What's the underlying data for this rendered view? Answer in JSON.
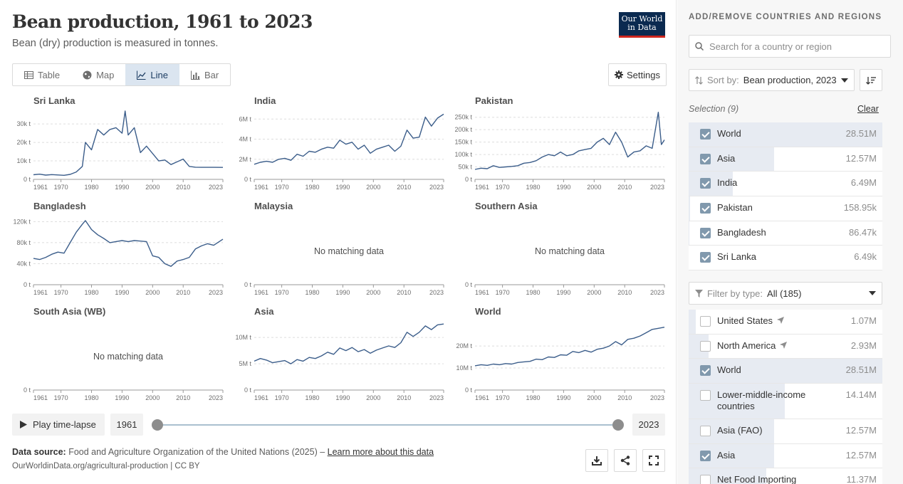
{
  "header": {
    "title": "Bean production, 1961 to 2023",
    "subtitle": "Bean (dry) production is measured in tonnes.",
    "logo_line1": "Our World",
    "logo_line2": "in Data"
  },
  "tabs": [
    {
      "label": "Table",
      "icon": "table-icon",
      "active": false
    },
    {
      "label": "Map",
      "icon": "globe-icon",
      "active": false
    },
    {
      "label": "Line",
      "icon": "line-chart-icon",
      "active": true
    },
    {
      "label": "Bar",
      "icon": "bar-chart-icon",
      "active": false
    }
  ],
  "settings_label": "Settings",
  "timeline": {
    "play_label": "Play time-lapse",
    "start_year": "1961",
    "end_year": "2023"
  },
  "footer": {
    "source_label": "Data source:",
    "source_text": "Food and Agriculture Organization of the United Nations (2025) –",
    "learn_more": "Learn more about this data",
    "url": "OurWorldinData.org/agricultural-production | CC BY"
  },
  "sidebar": {
    "heading": "ADD/REMOVE COUNTRIES AND REGIONS",
    "search_placeholder": "Search for a country or region",
    "sort_label": "Sort by:",
    "sort_value": "Bean production, 2023",
    "selection_label": "Selection (9)",
    "clear_label": "Clear",
    "selected": [
      {
        "name": "World",
        "value": "28.51M",
        "checked": true,
        "share": 1.0
      },
      {
        "name": "Asia",
        "value": "12.57M",
        "checked": true,
        "share": 0.441
      },
      {
        "name": "India",
        "value": "6.49M",
        "checked": true,
        "share": 0.228
      },
      {
        "name": "Pakistan",
        "value": "158.95k",
        "checked": true,
        "share": 0.006
      },
      {
        "name": "Bangladesh",
        "value": "86.47k",
        "checked": true,
        "share": 0.003
      },
      {
        "name": "Sri Lanka",
        "value": "6.49k",
        "checked": true,
        "share": 0.0002
      }
    ],
    "filter_label": "Filter by type:",
    "filter_value": "All (185)",
    "all_items": [
      {
        "name": "United States",
        "value": "1.07M",
        "checked": false,
        "share": 0.038,
        "locate": true
      },
      {
        "name": "North America",
        "value": "2.93M",
        "checked": false,
        "share": 0.103,
        "locate": true
      },
      {
        "name": "World",
        "value": "28.51M",
        "checked": true,
        "share": 1.0,
        "locate": false
      },
      {
        "name": "Lower-middle-income countries",
        "value": "14.14M",
        "checked": false,
        "share": 0.496,
        "locate": false
      },
      {
        "name": "Asia (FAO)",
        "value": "12.57M",
        "checked": false,
        "share": 0.441,
        "locate": false
      },
      {
        "name": "Asia",
        "value": "12.57M",
        "checked": true,
        "share": 0.441,
        "locate": false
      },
      {
        "name": "Net Food Importing",
        "value": "11.37M",
        "checked": false,
        "share": 0.399,
        "locate": false
      }
    ]
  },
  "chart_data": [
    {
      "type": "line",
      "title": "Sri Lanka",
      "has_data": true,
      "x_ticks": [
        "1961",
        "1970",
        "1980",
        "1990",
        "2000",
        "2010",
        "2023"
      ],
      "y_ticks": [
        "0 t",
        "10k t",
        "20k t",
        "30k t"
      ],
      "ylim": [
        0,
        37000
      ],
      "x": [
        1961,
        1963,
        1965,
        1967,
        1969,
        1971,
        1973,
        1975,
        1977,
        1978,
        1980,
        1982,
        1984,
        1986,
        1988,
        1990,
        1991,
        1992,
        1994,
        1996,
        1998,
        2000,
        2002,
        2004,
        2006,
        2008,
        2010,
        2012,
        2014,
        2016,
        2018,
        2020,
        2023
      ],
      "y": [
        2500,
        2800,
        2300,
        2600,
        2400,
        2200,
        2700,
        4000,
        7000,
        20000,
        16000,
        27000,
        24000,
        27000,
        28000,
        25000,
        37000,
        24000,
        28000,
        14500,
        18000,
        14000,
        10000,
        10500,
        8000,
        9500,
        11000,
        7000,
        6600,
        6500,
        6500,
        6500,
        6490
      ],
      "no_data_text": ""
    },
    {
      "type": "line",
      "title": "India",
      "has_data": true,
      "x_ticks": [
        "1961",
        "1970",
        "1980",
        "1990",
        "2000",
        "2010",
        "2023"
      ],
      "y_ticks": [
        "0 t",
        "2M t",
        "4M t",
        "6M t"
      ],
      "ylim": [
        0,
        6800000
      ],
      "x": [
        1961,
        1963,
        1965,
        1967,
        1969,
        1971,
        1973,
        1975,
        1977,
        1979,
        1981,
        1983,
        1985,
        1987,
        1989,
        1991,
        1993,
        1995,
        1997,
        1999,
        2001,
        2003,
        2005,
        2007,
        2009,
        2011,
        2013,
        2015,
        2017,
        2019,
        2021,
        2023
      ],
      "y": [
        1500000,
        1700000,
        1800000,
        1700000,
        2000000,
        2100000,
        1900000,
        2500000,
        2300000,
        2800000,
        2700000,
        3000000,
        3200000,
        3100000,
        3900000,
        3500000,
        3700000,
        3000000,
        3400000,
        2600000,
        3000000,
        3200000,
        3400000,
        2800000,
        3300000,
        4900000,
        4100000,
        4200000,
        6200000,
        5300000,
        6100000,
        6490000
      ],
      "no_data_text": ""
    },
    {
      "type": "line",
      "title": "Pakistan",
      "has_data": true,
      "x_ticks": [
        "1961",
        "1970",
        "1980",
        "1990",
        "2000",
        "2010",
        "2023"
      ],
      "y_ticks": [
        "0 t",
        "50k t",
        "100k t",
        "150k t",
        "200k t",
        "250k t"
      ],
      "ylim": [
        0,
        275000
      ],
      "x": [
        1961,
        1963,
        1965,
        1967,
        1969,
        1971,
        1973,
        1975,
        1977,
        1979,
        1981,
        1983,
        1985,
        1987,
        1989,
        1991,
        1993,
        1995,
        1997,
        1999,
        2001,
        2003,
        2005,
        2007,
        2009,
        2011,
        2013,
        2015,
        2017,
        2019,
        2021,
        2022,
        2023
      ],
      "y": [
        40000,
        45000,
        43000,
        55000,
        48000,
        50000,
        52000,
        55000,
        65000,
        68000,
        75000,
        90000,
        100000,
        95000,
        110000,
        95000,
        100000,
        115000,
        120000,
        125000,
        150000,
        165000,
        140000,
        190000,
        150000,
        90000,
        110000,
        115000,
        135000,
        125000,
        270000,
        140000,
        158950
      ],
      "no_data_text": ""
    },
    {
      "type": "line",
      "title": "Bangladesh",
      "has_data": true,
      "x_ticks": [
        "1961",
        "1970",
        "1980",
        "1990",
        "2000",
        "2010",
        "2023"
      ],
      "y_ticks": [
        "0 t",
        "40k t",
        "80k t",
        "120k t"
      ],
      "ylim": [
        0,
        130000
      ],
      "x": [
        1961,
        1963,
        1965,
        1967,
        1969,
        1971,
        1973,
        1975,
        1977,
        1978,
        1980,
        1982,
        1984,
        1986,
        1988,
        1990,
        1992,
        1994,
        1996,
        1998,
        2000,
        2002,
        2004,
        2006,
        2008,
        2010,
        2012,
        2014,
        2016,
        2018,
        2020,
        2023
      ],
      "y": [
        50000,
        48000,
        52000,
        58000,
        62000,
        60000,
        80000,
        100000,
        115000,
        122000,
        105000,
        95000,
        88000,
        80000,
        82000,
        84000,
        82000,
        84000,
        83000,
        82000,
        55000,
        52000,
        40000,
        35000,
        45000,
        48000,
        52000,
        68000,
        74000,
        78000,
        75000,
        86470
      ],
      "no_data_text": ""
    },
    {
      "type": "line",
      "title": "Malaysia",
      "has_data": false,
      "x_ticks": [
        "1961",
        "1970",
        "1980",
        "1990",
        "2000",
        "2010",
        "2023"
      ],
      "y_ticks": [
        "0 t"
      ],
      "ylim": [
        0,
        1
      ],
      "x": [],
      "y": [],
      "no_data_text": "No matching data"
    },
    {
      "type": "line",
      "title": "Southern Asia",
      "has_data": false,
      "x_ticks": [
        "1961",
        "1970",
        "1980",
        "1990",
        "2000",
        "2010",
        "2023"
      ],
      "y_ticks": [
        "0 t"
      ],
      "ylim": [
        0,
        1
      ],
      "x": [],
      "y": [],
      "no_data_text": "No matching data"
    },
    {
      "type": "line",
      "title": "South Asia (WB)",
      "has_data": false,
      "x_ticks": [
        "1961",
        "1970",
        "1980",
        "1990",
        "2000",
        "2010",
        "2023"
      ],
      "y_ticks": [
        "0 t"
      ],
      "ylim": [
        0,
        1
      ],
      "x": [],
      "y": [],
      "no_data_text": "No matching data"
    },
    {
      "type": "line",
      "title": "Asia",
      "has_data": true,
      "x_ticks": [
        "1961",
        "1970",
        "1980",
        "1990",
        "2000",
        "2010",
        "2023"
      ],
      "y_ticks": [
        "0 t",
        "5M t",
        "10M t"
      ],
      "ylim": [
        0,
        13000000
      ],
      "x": [
        1961,
        1963,
        1965,
        1967,
        1969,
        1971,
        1973,
        1975,
        1977,
        1979,
        1981,
        1983,
        1985,
        1987,
        1989,
        1991,
        1993,
        1995,
        1997,
        1999,
        2001,
        2003,
        2005,
        2007,
        2009,
        2011,
        2013,
        2015,
        2017,
        2019,
        2021,
        2023
      ],
      "y": [
        5500000,
        6000000,
        5700000,
        5200000,
        5400000,
        5600000,
        5000000,
        5800000,
        5500000,
        6200000,
        6000000,
        6500000,
        7200000,
        6800000,
        8000000,
        7500000,
        8100000,
        7300000,
        7700000,
        7000000,
        7600000,
        8000000,
        8400000,
        8100000,
        9000000,
        11000000,
        10200000,
        11000000,
        12200000,
        11500000,
        12400000,
        12570000
      ],
      "no_data_text": ""
    },
    {
      "type": "line",
      "title": "World",
      "has_data": true,
      "x_ticks": [
        "1961",
        "1970",
        "1980",
        "1990",
        "2000",
        "2010",
        "2023"
      ],
      "y_ticks": [
        "0 t",
        "10M t",
        "20M t"
      ],
      "ylim": [
        0,
        31000000
      ],
      "x": [
        1961,
        1963,
        1965,
        1967,
        1969,
        1971,
        1973,
        1975,
        1977,
        1979,
        1981,
        1983,
        1985,
        1987,
        1989,
        1991,
        1993,
        1995,
        1997,
        1999,
        2001,
        2003,
        2005,
        2007,
        2009,
        2011,
        2013,
        2015,
        2017,
        2019,
        2021,
        2023
      ],
      "y": [
        11000000,
        11500000,
        11200000,
        11800000,
        11500000,
        12000000,
        11800000,
        12500000,
        12800000,
        13000000,
        14000000,
        13800000,
        15000000,
        14800000,
        16000000,
        15800000,
        17500000,
        17000000,
        18000000,
        17200000,
        18500000,
        19000000,
        20000000,
        22000000,
        20500000,
        23000000,
        23500000,
        24500000,
        26000000,
        27500000,
        28000000,
        28510000
      ],
      "no_data_text": ""
    }
  ]
}
